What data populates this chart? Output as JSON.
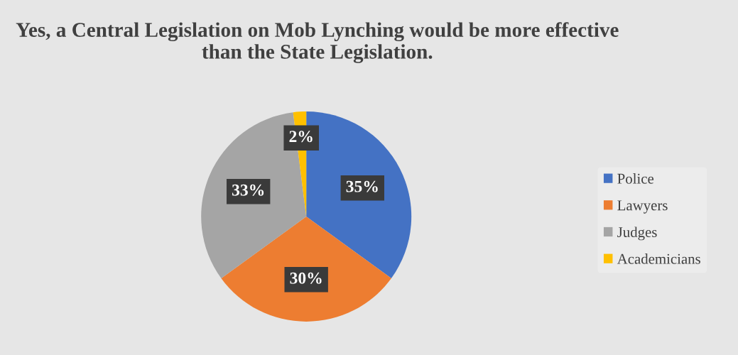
{
  "chart_data": {
    "type": "pie",
    "title": "Yes, a Central Legislation on Mob Lynching would be more effective than the State Legislation.",
    "categories": [
      "Police",
      "Lawyers",
      "Judges",
      "Academicians"
    ],
    "values": [
      35,
      30,
      33,
      2
    ],
    "colors": [
      "#4472c4",
      "#ed7d31",
      "#a5a5a5",
      "#ffc000"
    ],
    "value_labels": [
      "35%",
      "30%",
      "33%",
      "2%"
    ],
    "legend": "right"
  }
}
